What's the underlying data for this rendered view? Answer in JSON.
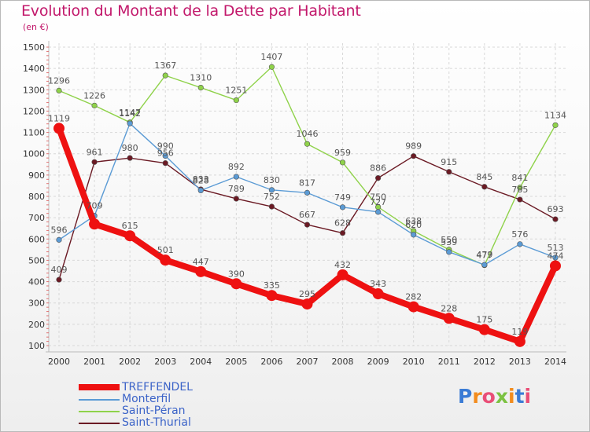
{
  "header": {
    "title": "Evolution du Montant de la Dette par Habitant",
    "subtitle": "(en €)"
  },
  "logo": {
    "text": "Proxiti",
    "colors": [
      "#3a7bd5",
      "#f28c1e",
      "#e94e77",
      "#7cc242",
      "#f28c1e",
      "#3a7bd5",
      "#e94e77"
    ]
  },
  "chart_data": {
    "type": "line",
    "title": "Evolution du Montant de la Dette par Habitant",
    "subtitle": "(en €)",
    "xlabel": "",
    "ylabel": "",
    "ylim": [
      100,
      1500
    ],
    "yticks": [
      100,
      200,
      300,
      400,
      500,
      600,
      700,
      800,
      900,
      1000,
      1100,
      1200,
      1300,
      1400,
      1500
    ],
    "categories": [
      "2000",
      "2001",
      "2002",
      "2003",
      "2004",
      "2005",
      "2006",
      "2007",
      "2008",
      "2009",
      "2010",
      "2011",
      "2012",
      "2013",
      "2014"
    ],
    "grid": true,
    "legend_position": "bottom-left",
    "series": [
      {
        "name": "TREFFENDEL",
        "color": "#ee1111",
        "values": [
          1119,
          670,
          615,
          501,
          447,
          390,
          335,
          295,
          432,
          343,
          282,
          228,
          175,
          119,
          474
        ],
        "labels": [
          "1119",
          "",
          "615",
          "501",
          "447",
          "390",
          "335",
          "295",
          "432",
          "343",
          "282",
          "228",
          "175",
          "119",
          "474"
        ]
      },
      {
        "name": "Monterfil",
        "color": "#5b9bd5",
        "values": [
          596,
          709,
          1142,
          990,
          828,
          892,
          830,
          817,
          749,
          727,
          620,
          539,
          479,
          576,
          513
        ],
        "labels": [
          "596",
          "709",
          "1142",
          "990",
          "828",
          "892",
          "830",
          "817",
          "749",
          "727",
          "620",
          "539",
          "479",
          "576",
          "513"
        ]
      },
      {
        "name": "Saint-Péran",
        "color": "#8fd24a",
        "values": [
          1296,
          1226,
          1147,
          1367,
          1310,
          1251,
          1407,
          1046,
          959,
          750,
          638,
          550,
          477,
          841,
          1134
        ],
        "labels": [
          "1296",
          "1226",
          "1147",
          "1367",
          "1310",
          "1251",
          "1407",
          "1046",
          "959",
          "750",
          "638",
          "550",
          "477",
          "841",
          "1134"
        ]
      },
      {
        "name": "Saint-Thurial",
        "color": "#6b1a24",
        "values": [
          409,
          961,
          980,
          956,
          833,
          789,
          752,
          667,
          628,
          886,
          989,
          915,
          845,
          785,
          693
        ],
        "labels": [
          "409",
          "961",
          "980",
          "956",
          "833",
          "789",
          "752",
          "667",
          "628",
          "886",
          "989",
          "915",
          "845",
          "785",
          "693"
        ]
      }
    ]
  }
}
